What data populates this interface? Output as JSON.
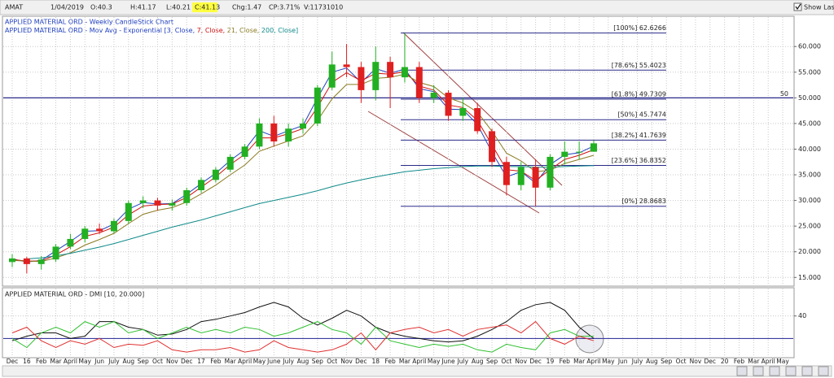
{
  "header": {
    "symbol": "AMAT",
    "date": "1/04/2019",
    "open": "O:40.3",
    "high": "H:41.17",
    "low": "L:40.21",
    "close": "C:41.13",
    "change": "Chg:1.47",
    "change_pct": "CP:3.71%",
    "volume": "V:11731010",
    "show_last": "Show Last"
  },
  "chart_data": [
    {
      "type": "candlestick",
      "title": "APPLIED MATERIAL ORD - Weekly CandleStick Chart",
      "subtitle_parts": [
        {
          "text": "APPLIED MATERIAL ORD - Mov Avg - Exponential [3, Close, ",
          "color": "#1f3fbf"
        },
        {
          "text": "7, Close, ",
          "color": "#d01010"
        },
        {
          "text": "21, Close, ",
          "color": "#8a7a20"
        },
        {
          "text": "200, Close]",
          "color": "#108a8a"
        }
      ],
      "up_color": "#22b022",
      "down_color": "#e02020",
      "open": [
        18.0,
        18.7,
        17.6,
        18.5,
        21.0,
        22.5,
        24.5,
        24.0,
        26.0,
        29.5,
        30.0,
        29.0,
        29.5,
        32.0,
        34.0,
        36.0,
        38.5,
        40.5,
        45.0,
        41.5,
        44.0,
        45.0,
        52.0,
        56.5,
        56.0,
        51.5,
        57.0,
        54.0,
        56.0,
        50.0,
        51.0,
        46.5,
        48.0,
        43.5,
        37.5,
        33.0,
        36.5,
        32.5,
        38.5,
        39.5,
        39.5,
        null,
        null,
        null,
        null,
        null,
        null,
        null,
        null,
        null,
        null,
        null,
        null,
        null
      ],
      "high": [
        19.5,
        19.0,
        19.2,
        21.5,
        23.5,
        25.0,
        25.5,
        26.5,
        30.0,
        30.8,
        30.5,
        30.2,
        32.5,
        34.5,
        36.5,
        39.0,
        41.0,
        46.0,
        46.5,
        45.0,
        46.0,
        52.5,
        59.0,
        60.5,
        57.0,
        60.0,
        58.0,
        62.63,
        57.0,
        52.5,
        51.5,
        50.0,
        49.0,
        44.0,
        38.5,
        37.5,
        38.0,
        39.0,
        41.5,
        41.5,
        41.7,
        null,
        null,
        null,
        null,
        null,
        null,
        null,
        null,
        null,
        null,
        null,
        null,
        null
      ],
      "low": [
        17.0,
        15.8,
        16.5,
        18.0,
        20.5,
        21.8,
        23.5,
        23.5,
        25.5,
        28.5,
        28.0,
        28.0,
        29.0,
        31.5,
        33.5,
        35.5,
        38.0,
        40.0,
        40.5,
        40.5,
        43.0,
        44.5,
        51.5,
        54.0,
        49.0,
        49.5,
        48.0,
        53.0,
        49.0,
        49.0,
        45.5,
        45.5,
        43.0,
        36.5,
        31.0,
        32.0,
        28.87,
        32.0,
        37.0,
        38.0,
        39.5,
        null,
        null,
        null,
        null,
        null,
        null,
        null,
        null,
        null,
        null,
        null,
        null,
        null
      ],
      "close": [
        18.7,
        17.6,
        18.5,
        21.0,
        22.5,
        24.5,
        24.0,
        26.0,
        29.5,
        30.0,
        29.0,
        29.5,
        32.0,
        34.0,
        36.0,
        38.5,
        40.5,
        45.0,
        41.5,
        44.0,
        45.0,
        52.0,
        56.5,
        56.0,
        51.5,
        57.0,
        54.0,
        56.0,
        50.0,
        51.0,
        46.5,
        48.0,
        43.5,
        37.5,
        33.0,
        36.5,
        32.5,
        38.5,
        39.5,
        39.5,
        41.13,
        null,
        null,
        null,
        null,
        null,
        null,
        null,
        null,
        null,
        null,
        null,
        null,
        null
      ],
      "series": [
        {
          "color": "#1f3fbf",
          "values": [
            18.6,
            18.0,
            18.3,
            20.2,
            22.0,
            24.0,
            24.1,
            25.4,
            28.3,
            29.6,
            29.3,
            29.4,
            31.2,
            33.3,
            35.3,
            37.8,
            39.9,
            43.6,
            42.5,
            43.6,
            44.6,
            50.0,
            55.0,
            55.8,
            53.0,
            55.7,
            54.8,
            55.6,
            51.8,
            51.2,
            47.8,
            47.7,
            44.8,
            39.4,
            34.6,
            35.6,
            33.4,
            37.0,
            38.9,
            39.3,
            40.6,
            null,
            null,
            null,
            null,
            null,
            null,
            null,
            null,
            null,
            null,
            null,
            null,
            null
          ]
        },
        {
          "color": "#d01010",
          "values": [
            18.5,
            18.2,
            18.2,
            19.4,
            21.0,
            23.0,
            23.7,
            24.8,
            27.2,
            28.9,
            29.2,
            29.3,
            30.6,
            32.6,
            34.6,
            37.0,
            39.0,
            42.2,
            42.2,
            43.0,
            44.0,
            48.2,
            53.0,
            54.9,
            53.3,
            54.8,
            54.6,
            55.1,
            52.3,
            51.5,
            48.6,
            48.1,
            45.6,
            40.8,
            36.0,
            35.7,
            33.9,
            36.0,
            38.0,
            38.8,
            39.9,
            null,
            null,
            null,
            null,
            null,
            null,
            null,
            null,
            null,
            null,
            null,
            null,
            null
          ]
        },
        {
          "color": "#8a7a20",
          "values": [
            18.3,
            18.2,
            18.1,
            18.8,
            19.8,
            21.3,
            22.4,
            23.6,
            25.5,
            27.3,
            28.1,
            28.6,
            29.7,
            31.3,
            33.0,
            35.0,
            36.9,
            39.6,
            40.6,
            41.6,
            42.6,
            45.6,
            49.8,
            52.6,
            52.6,
            53.8,
            54.0,
            54.6,
            53.0,
            52.2,
            50.0,
            49.0,
            47.2,
            43.5,
            39.2,
            37.7,
            35.6,
            35.9,
            37.2,
            38.0,
            38.8,
            null,
            null,
            null,
            null,
            null,
            null,
            null,
            null,
            null,
            null,
            null,
            null,
            null
          ]
        },
        {
          "color": "#108a8a",
          "values": [
            null,
            18.6,
            18.8,
            19.2,
            19.7,
            20.3,
            20.9,
            21.6,
            22.4,
            23.2,
            24.0,
            24.8,
            25.5,
            26.2,
            27.0,
            27.8,
            28.6,
            29.4,
            30.0,
            30.6,
            31.2,
            31.9,
            32.7,
            33.4,
            34.0,
            34.6,
            35.1,
            35.6,
            35.9,
            36.2,
            36.4,
            36.6,
            36.7,
            36.7,
            36.6,
            36.6,
            36.5,
            36.5,
            36.6,
            36.7,
            36.8,
            null,
            null,
            null,
            null,
            null,
            null,
            null,
            null,
            null,
            null,
            null,
            null,
            null
          ]
        }
      ],
      "levels": [
        {
          "value": 62.6266,
          "label": "[100%] 62.6266"
        },
        {
          "value": 55.4023,
          "label": "[78.6%] 55.4023"
        },
        {
          "value": 49.7309,
          "label": "[61.8%] 49.7309"
        },
        {
          "value": 45.7474,
          "label": "[50%] 45.7474"
        },
        {
          "value": 41.7639,
          "label": "[38.2%] 41.7639"
        },
        {
          "value": 36.8352,
          "label": "[23.6%] 36.8352"
        },
        {
          "value": 28.8683,
          "label": "[0%] 28.8683"
        }
      ],
      "level_color": "#2a2a8a",
      "hline": {
        "value": 50,
        "label": "50"
      },
      "ylim": [
        13.3,
        65.9
      ],
      "yticks": [
        {
          "value": 60,
          "label": "60.000"
        },
        {
          "value": 55,
          "label": "55.000"
        },
        {
          "value": 50,
          "label": "50.000"
        },
        {
          "value": 45,
          "label": "45.000"
        },
        {
          "value": 40,
          "label": "40.000"
        },
        {
          "value": 35,
          "label": "35.000"
        },
        {
          "value": 30,
          "label": "30.000"
        },
        {
          "value": 25,
          "label": "25.000"
        },
        {
          "value": 20,
          "label": "20.000"
        },
        {
          "value": 15,
          "label": "15.000"
        }
      ],
      "grid": true
    },
    {
      "type": "line",
      "title": "APPLIED MATERIAL ORD - DMI [10, 20.000]",
      "categories": [
        "Dec",
        "16",
        "Feb",
        "Mar",
        "April",
        "May",
        "Jun",
        "July",
        "Aug",
        "Sep",
        "Oct",
        "Nov",
        "Dec",
        "17",
        "Feb",
        "Mar",
        "April",
        "May",
        "June",
        "July",
        "Aug",
        "Sep",
        "Oct",
        "Nov",
        "Dec",
        "18",
        "Feb",
        "Mar",
        "April",
        "May",
        "June",
        "July",
        "Aug",
        "Sep",
        "Oct",
        "Nov",
        "Dec",
        "19",
        "Feb",
        "Mar",
        "April",
        "May",
        "Jun",
        "July",
        "Aug",
        "Sep",
        "Oct",
        "Nov",
        "Dec",
        "20",
        "Feb",
        "Mar",
        "April",
        "May"
      ],
      "series": [
        {
          "color": "#111111",
          "values": [
            18,
            22,
            25,
            25,
            20,
            22,
            35,
            35,
            30,
            28,
            23,
            24,
            28,
            35,
            37,
            40,
            43,
            48,
            52,
            48,
            38,
            32,
            38,
            45,
            40,
            30,
            25,
            22,
            20,
            18,
            17,
            18,
            22,
            28,
            35,
            45,
            50,
            52,
            45,
            30,
            20,
            null,
            null,
            null,
            null,
            null,
            null,
            null,
            null,
            null,
            null,
            null,
            null,
            null
          ]
        },
        {
          "color": "#30c030",
          "values": [
            20,
            12,
            25,
            30,
            25,
            35,
            30,
            35,
            25,
            28,
            20,
            25,
            30,
            25,
            28,
            25,
            30,
            28,
            22,
            25,
            30,
            35,
            28,
            25,
            15,
            30,
            18,
            15,
            12,
            15,
            13,
            15,
            10,
            8,
            15,
            12,
            10,
            25,
            28,
            22,
            22,
            null,
            null,
            null,
            null,
            null,
            null,
            null,
            null,
            null,
            null,
            null,
            null,
            null
          ]
        },
        {
          "color": "#e03030",
          "values": [
            25,
            30,
            18,
            12,
            18,
            15,
            20,
            12,
            15,
            14,
            18,
            10,
            8,
            10,
            10,
            12,
            8,
            10,
            18,
            12,
            10,
            8,
            10,
            15,
            25,
            10,
            25,
            28,
            30,
            25,
            28,
            22,
            28,
            30,
            32,
            25,
            35,
            20,
            15,
            22,
            18,
            null,
            null,
            null,
            null,
            null,
            null,
            null,
            null,
            null,
            null,
            null,
            null,
            null
          ]
        }
      ],
      "threshold": {
        "value": 20,
        "color": "#3a3aa0"
      },
      "ylim": [
        3,
        65
      ],
      "yticks": [
        40
      ],
      "grid": true
    }
  ]
}
